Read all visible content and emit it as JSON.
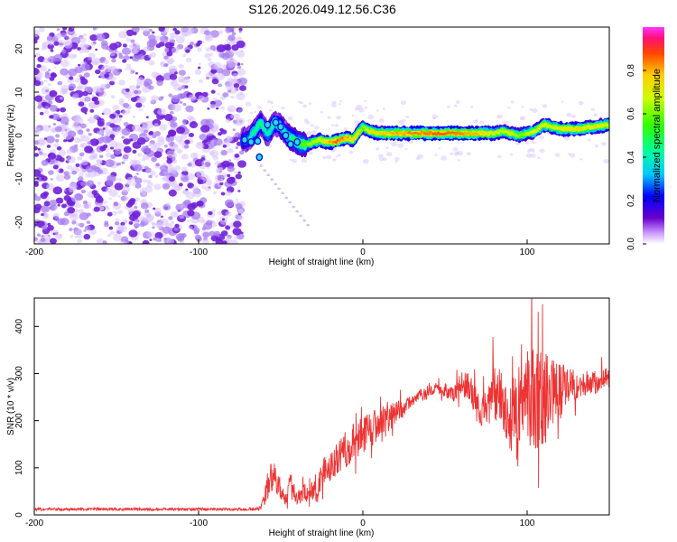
{
  "title": "S126.2026.049.12.56.C36",
  "chart_data": [
    {
      "type": "heatmap",
      "name": "spectrogram",
      "xlabel": "Height of straight line (km)",
      "ylabel": "Frequency (Hz)",
      "xlim": [
        -200,
        150
      ],
      "ylim": [
        -25,
        25
      ],
      "xticks": [
        -200,
        -100,
        0,
        100
      ],
      "yticks": [
        -20,
        -10,
        0,
        10,
        20
      ],
      "noise_region_x": [
        -200,
        -73
      ],
      "ridge": {
        "x": [
          -73,
          -70,
          -66,
          -62,
          -58,
          -54,
          -50,
          -46,
          -42,
          -38,
          -34,
          -30,
          -26,
          -22,
          -18,
          -14,
          -10,
          -6,
          -2,
          0,
          4,
          10,
          20,
          30,
          40,
          50,
          60,
          70,
          80,
          85,
          90,
          95,
          100,
          105,
          110,
          115,
          120,
          130,
          140,
          150
        ],
        "freq_hz": [
          -1,
          -1,
          1,
          3,
          0,
          3,
          2,
          0,
          -1,
          -2,
          -2,
          -1.5,
          -1,
          -1.5,
          -1.5,
          -1,
          -0.5,
          -1,
          1,
          2,
          1,
          0.5,
          0.5,
          0.5,
          0.5,
          0.5,
          0.5,
          0.5,
          0.5,
          1,
          0.5,
          0,
          0.5,
          1,
          2.5,
          2,
          1.5,
          1.5,
          2,
          2.5
        ],
        "amplitude": [
          0.35,
          0.35,
          0.45,
          0.45,
          0.4,
          0.45,
          0.45,
          0.4,
          0.5,
          0.55,
          0.6,
          0.65,
          0.7,
          0.75,
          0.85,
          0.85,
          0.8,
          0.75,
          0.7,
          0.6,
          0.7,
          0.75,
          0.8,
          0.82,
          0.85,
          0.85,
          0.83,
          0.78,
          0.7,
          0.65,
          0.7,
          0.6,
          0.65,
          0.7,
          0.7,
          0.68,
          0.72,
          0.75,
          0.72,
          0.7
        ]
      },
      "colorbar": {
        "label": "Normalized spectral amplitude",
        "range": [
          0,
          1
        ],
        "ticks": [
          "0.0",
          "0.2",
          "0.4",
          "0.6",
          "0.8"
        ],
        "colors": [
          "#ffffff",
          "#cc99ff",
          "#6600cc",
          "#0000ff",
          "#00c8ff",
          "#00ff99",
          "#33ff00",
          "#ccff00",
          "#ffcc00",
          "#ff4400",
          "#ff1177",
          "#ff33ff"
        ]
      }
    },
    {
      "type": "line",
      "name": "snr",
      "xlabel": "Height of straight line (km)",
      "ylabel": "SNR (10 * v/v)",
      "xlim": [
        -200,
        150
      ],
      "ylim": [
        0,
        460
      ],
      "xticks": [
        -200,
        -100,
        0,
        100
      ],
      "yticks": [
        0,
        100,
        200,
        300,
        400
      ],
      "color": "#ee3333",
      "series": [
        {
          "name": "SNR",
          "x": [
            -200,
            -150,
            -100,
            -70,
            -62,
            -58,
            -55,
            -52,
            -48,
            -44,
            -40,
            -36,
            -32,
            -28,
            -25,
            -20,
            -15,
            -10,
            -5,
            0,
            5,
            10,
            15,
            20,
            25,
            30,
            35,
            40,
            45,
            50,
            55,
            60,
            65,
            70,
            75,
            80,
            85,
            90,
            95,
            100,
            105,
            110,
            115,
            120,
            125,
            130,
            140,
            150
          ],
          "mean": [
            12,
            12,
            12,
            12,
            15,
            60,
            85,
            70,
            35,
            60,
            35,
            45,
            55,
            40,
            90,
            100,
            120,
            140,
            160,
            170,
            180,
            200,
            205,
            215,
            230,
            245,
            255,
            262,
            268,
            265,
            255,
            280,
            270,
            225,
            230,
            260,
            255,
            215,
            235,
            260,
            250,
            245,
            275,
            260,
            280,
            275,
            280,
            290
          ],
          "spread": [
            3,
            3,
            3,
            3,
            5,
            30,
            35,
            30,
            15,
            30,
            15,
            20,
            25,
            20,
            30,
            30,
            35,
            40,
            40,
            40,
            40,
            35,
            30,
            25,
            20,
            15,
            12,
            10,
            10,
            15,
            15,
            25,
            30,
            40,
            40,
            60,
            70,
            80,
            90,
            110,
            120,
            110,
            80,
            60,
            40,
            30,
            25,
            25
          ]
        }
      ]
    }
  ]
}
